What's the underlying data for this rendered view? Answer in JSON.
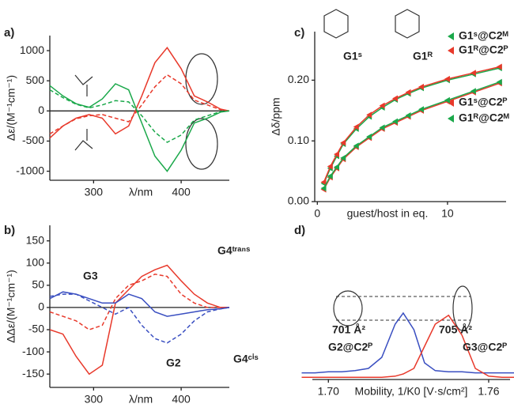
{
  "chart_data": [
    {
      "type": "line",
      "label": "a)",
      "xlabel": "λ/nm",
      "ylabel": "Δε/(M⁻¹cm⁻¹)",
      "x": [
        250,
        265,
        280,
        295,
        310,
        325,
        340,
        355,
        370,
        384,
        400,
        415,
        430,
        445,
        455
      ],
      "xlim": [
        250,
        455
      ],
      "xticks": [
        300,
        400
      ],
      "ylim": [
        -1150,
        1250
      ],
      "yticks": [
        -1000,
        -500,
        0,
        500,
        1000
      ],
      "series": [
        {
          "color": "#e8392b",
          "dashed": false,
          "values": [
            -450,
            -250,
            -120,
            -60,
            -120,
            -380,
            -250,
            250,
            800,
            1050,
            700,
            250,
            150,
            30,
            0
          ]
        },
        {
          "color": "#e8392b",
          "dashed": true,
          "values": [
            -380,
            -250,
            -130,
            -80,
            -60,
            -120,
            -180,
            100,
            400,
            600,
            450,
            180,
            100,
            20,
            0
          ]
        },
        {
          "color": "#1aa84a",
          "dashed": false,
          "values": [
            420,
            250,
            120,
            60,
            200,
            450,
            350,
            -200,
            -750,
            -1000,
            -650,
            -200,
            -120,
            -20,
            0
          ]
        },
        {
          "color": "#1aa84a",
          "dashed": true,
          "values": [
            350,
            220,
            110,
            50,
            100,
            170,
            150,
            -80,
            -350,
            -520,
            -400,
            -150,
            -80,
            -10,
            0
          ]
        }
      ],
      "annotations": []
    },
    {
      "type": "line",
      "label": "b)",
      "xlabel": "λ/nm",
      "ylabel": "ΔΔε/(M⁻¹cm⁻¹)",
      "x": [
        250,
        265,
        280,
        295,
        310,
        325,
        340,
        355,
        370,
        384,
        400,
        415,
        430,
        445,
        455
      ],
      "xlim": [
        250,
        455
      ],
      "xticks": [
        300,
        400
      ],
      "ylim": [
        -180,
        185
      ],
      "yticks": [
        -150,
        -100,
        -50,
        0,
        50,
        100,
        150
      ],
      "series": [
        {
          "color": "#e8392b",
          "dashed": false,
          "values": [
            -50,
            -60,
            -110,
            -150,
            -130,
            10,
            40,
            70,
            85,
            95,
            60,
            30,
            10,
            0,
            0
          ]
        },
        {
          "color": "#e8392b",
          "dashed": true,
          "values": [
            -10,
            -20,
            -30,
            -50,
            -40,
            20,
            50,
            60,
            75,
            70,
            30,
            10,
            0,
            0,
            0
          ]
        },
        {
          "color": "#3a4fc1",
          "dashed": false,
          "values": [
            20,
            35,
            30,
            20,
            10,
            10,
            30,
            20,
            -10,
            -20,
            -15,
            -10,
            -5,
            -3,
            0
          ]
        },
        {
          "color": "#3a4fc1",
          "dashed": true,
          "values": [
            25,
            30,
            30,
            15,
            0,
            -15,
            0,
            -40,
            -70,
            -80,
            -60,
            -30,
            -10,
            -3,
            0
          ]
        }
      ],
      "annotations": [
        "G3",
        "G4ᵗʳᵃⁿˢ",
        "G2",
        "G4ᶜⁱˢ"
      ]
    },
    {
      "type": "line",
      "label": "c)",
      "xlabel": "guest/host in eq.",
      "ylabel": "Δδ/ppm",
      "markers": true,
      "x": [
        0.5,
        1,
        1.5,
        2,
        3,
        4,
        5,
        6,
        7,
        8,
        10,
        12,
        14
      ],
      "xlim": [
        -0.2,
        14.5
      ],
      "xticks": [
        0,
        10
      ],
      "ylim": [
        0,
        0.28
      ],
      "yticks": [
        {
          "value": 0,
          "label": "0.00"
        },
        {
          "value": 0.1,
          "label": "0.10"
        },
        {
          "value": 0.2,
          "label": "0.20"
        }
      ],
      "series": [
        {
          "name": "G1ˢ@C2ᴹ",
          "color": "#1aa84a",
          "values": [
            0.03,
            0.055,
            0.075,
            0.095,
            0.12,
            0.14,
            0.155,
            0.168,
            0.178,
            0.187,
            0.2,
            0.21,
            0.22
          ]
        },
        {
          "name": "G1ᴿ@C2ᴾ",
          "color": "#e8392b",
          "values": [
            0.032,
            0.058,
            0.078,
            0.097,
            0.123,
            0.143,
            0.158,
            0.17,
            0.18,
            0.189,
            0.202,
            0.212,
            0.222
          ]
        },
        {
          "name": "G1ˢ@C2ᴾ",
          "color": "#e8392b",
          "values": [
            0.02,
            0.04,
            0.055,
            0.07,
            0.09,
            0.105,
            0.12,
            0.13,
            0.14,
            0.15,
            0.165,
            0.18,
            0.195
          ]
        },
        {
          "name": "G1ᴿ@C2ᴹ",
          "color": "#1aa84a",
          "values": [
            0.022,
            0.042,
            0.057,
            0.072,
            0.092,
            0.107,
            0.122,
            0.132,
            0.142,
            0.152,
            0.167,
            0.182,
            0.197
          ]
        }
      ],
      "annotations": [
        "G1ˢ",
        "G1ᴿ"
      ]
    },
    {
      "type": "line",
      "label": "d)",
      "xlabel": "Mobility, 1/K0 [V·s/cm²]",
      "x": [
        1.69,
        1.695,
        1.7,
        1.705,
        1.71,
        1.715,
        1.72,
        1.725,
        1.728,
        1.732,
        1.736,
        1.74,
        1.745,
        1.75,
        1.755,
        1.76,
        1.765,
        1.77
      ],
      "xlim": [
        1.694,
        1.768
      ],
      "xticks": [
        {
          "value": 1.7,
          "label": "1.70"
        },
        {
          "value": 1.76,
          "label": "1.76"
        }
      ],
      "ylim": [
        0,
        1
      ],
      "series": [
        {
          "color": "#3a4fc1",
          "values": [
            0.06,
            0.06,
            0.07,
            0.07,
            0.08,
            0.1,
            0.2,
            0.5,
            0.6,
            0.45,
            0.15,
            0.08,
            0.07,
            0.07,
            0.06,
            0.06,
            0.06,
            0.06
          ]
        },
        {
          "color": "#e8392b",
          "values": [
            0.02,
            0.02,
            0.02,
            0.02,
            0.02,
            0.02,
            0.02,
            0.03,
            0.05,
            0.1,
            0.3,
            0.5,
            0.58,
            0.4,
            0.1,
            0.03,
            0.02,
            0.02
          ]
        }
      ],
      "annotations": [
        "701 Å²",
        "705 Å²",
        "G2@C2ᴾ",
        "G3@C2ᴾ"
      ]
    }
  ]
}
